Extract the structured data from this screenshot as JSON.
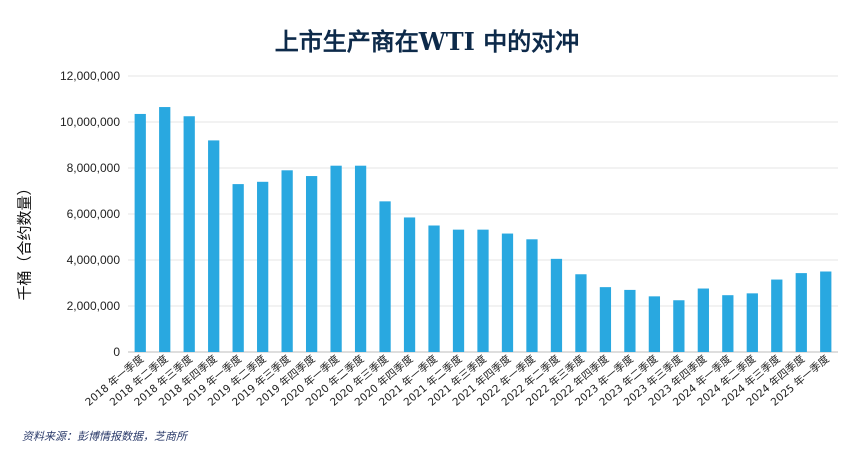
{
  "chart_data": {
    "type": "bar",
    "title": "上市生产商在WTI 中的对冲",
    "ylabel": "千桶（合约数量）",
    "xlabel": "",
    "ylim": [
      0,
      12000000
    ],
    "yticks": [
      "0",
      "2,000,000",
      "4,000,000",
      "6,000,000",
      "8,000,000",
      "10,000,000",
      "12,000,000"
    ],
    "grid": true,
    "bar_color": "#29a8e0",
    "categories": [
      "2018 年一季度",
      "2018 年二季度",
      "2018 年三季度",
      "2018 年四季度",
      "2019 年一季度",
      "2019 年二季度",
      "2019 年三季度",
      "2019 年四季度",
      "2020 年一季度",
      "2020 年二季度",
      "2020 年三季度",
      "2020 年四季度",
      "2021 年一季度",
      "2021 年二季度",
      "2021 年三季度",
      "2021 年四季度",
      "2022 年一季度",
      "2022 年二季度",
      "2022 年三季度",
      "2022 年四季度",
      "2023 年一季度",
      "2023 年二季度",
      "2023 年三季度",
      "2023 年四季度",
      "2024 年一季度",
      "2024 年二季度",
      "2024 年三季度",
      "2024 年四季度",
      "2025 年一季度"
    ],
    "values": [
      10350000,
      10650000,
      10250000,
      9200000,
      7300000,
      7400000,
      7900000,
      7650000,
      8100000,
      8100000,
      6550000,
      5850000,
      5500000,
      5320000,
      5320000,
      5150000,
      4900000,
      4050000,
      3380000,
      2820000,
      2700000,
      2420000,
      2250000,
      2760000,
      2470000,
      2550000,
      3150000,
      3430000,
      3500000
    ]
  },
  "source_text": "资料来源：彭博情报数据，芝商所"
}
